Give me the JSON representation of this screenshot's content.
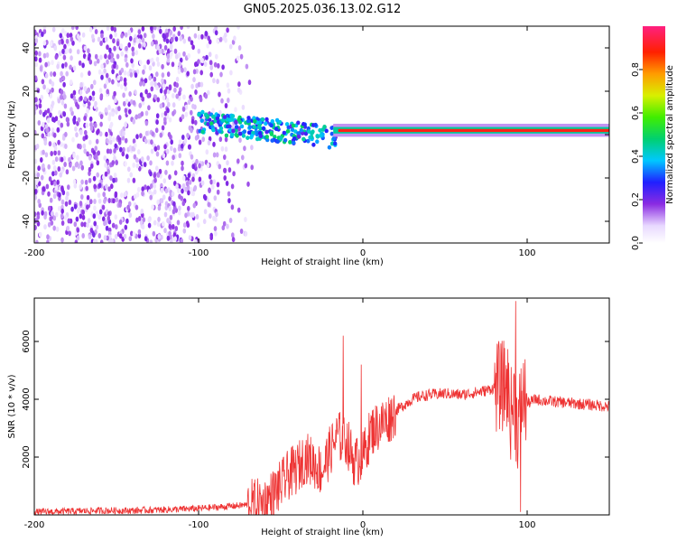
{
  "title": "GN05.2025.036.13.02.G12",
  "colors": {
    "line": "#ee3333",
    "axis": "#000000"
  },
  "chart_data": [
    {
      "type": "heatmap",
      "xlabel": "Height of straight line (km)",
      "ylabel": "Frequency (Hz)",
      "xlim": [
        -200,
        150
      ],
      "ylim": [
        -50,
        50
      ],
      "x_ticks": [
        "-200",
        "-100",
        "0",
        "100"
      ],
      "y_ticks": [
        "40",
        "20",
        "0",
        "-20",
        "-40"
      ],
      "colorbar": {
        "label": "Normalized spectral amplitude",
        "range": [
          0,
          1
        ],
        "ticks": [
          "0.0",
          "0.2",
          "0.4",
          "0.6",
          "0.8"
        ]
      },
      "description_regions": [
        {
          "x": [
            -200,
            -70
          ],
          "note": "scattered low-amplitude noise (0.0-0.2)"
        },
        {
          "x": [
            -100,
            -15
          ],
          "freq": [
            -10,
            10
          ],
          "note": "moderate-amplitude band (0.3-0.5)"
        },
        {
          "x": [
            -15,
            150
          ],
          "freq": [
            1,
            3
          ],
          "note": "strong carrier line (0.8-1.0)"
        }
      ]
    },
    {
      "type": "line",
      "xlabel": "Height of straight line (km)",
      "ylabel": "SNR (10 * v/v)",
      "xlim": [
        -200,
        150
      ],
      "ylim": [
        0,
        7500
      ],
      "x_ticks": [
        "-200",
        "-100",
        "0",
        "100"
      ],
      "y_ticks": [
        "6000",
        "4000",
        "2000"
      ],
      "series": [
        {
          "x": [
            -200,
            -180,
            -160,
            -140,
            -120,
            -100,
            -80,
            -70,
            -60,
            -55,
            -50,
            -45,
            -40,
            -35,
            -30,
            -25,
            -20,
            -15,
            -12,
            -10,
            -5,
            0,
            5,
            10,
            15,
            20,
            25,
            30,
            35,
            40,
            50,
            60,
            70,
            75,
            80,
            85,
            88,
            90,
            92,
            94,
            96,
            98,
            100,
            105,
            110,
            120,
            130,
            140,
            150
          ],
          "y": [
            100,
            120,
            150,
            150,
            180,
            220,
            300,
            350,
            400,
            700,
            1000,
            1400,
            1600,
            2000,
            1800,
            1500,
            2200,
            2800,
            2500,
            2600,
            1800,
            2000,
            2900,
            3100,
            3300,
            3600,
            3800,
            4000,
            4100,
            4150,
            4200,
            4150,
            4250,
            4300,
            4400,
            4450,
            4500,
            3500,
            4000,
            3000,
            3800,
            4100,
            3850,
            4000,
            3950,
            3900,
            3850,
            3800,
            3750
          ]
        }
      ],
      "spikes": [
        {
          "x": -12,
          "y": 6200
        },
        {
          "x": -1,
          "y": 5200
        },
        {
          "x": 93,
          "y": 7400
        },
        {
          "x": 96,
          "y": 100
        }
      ]
    }
  ]
}
